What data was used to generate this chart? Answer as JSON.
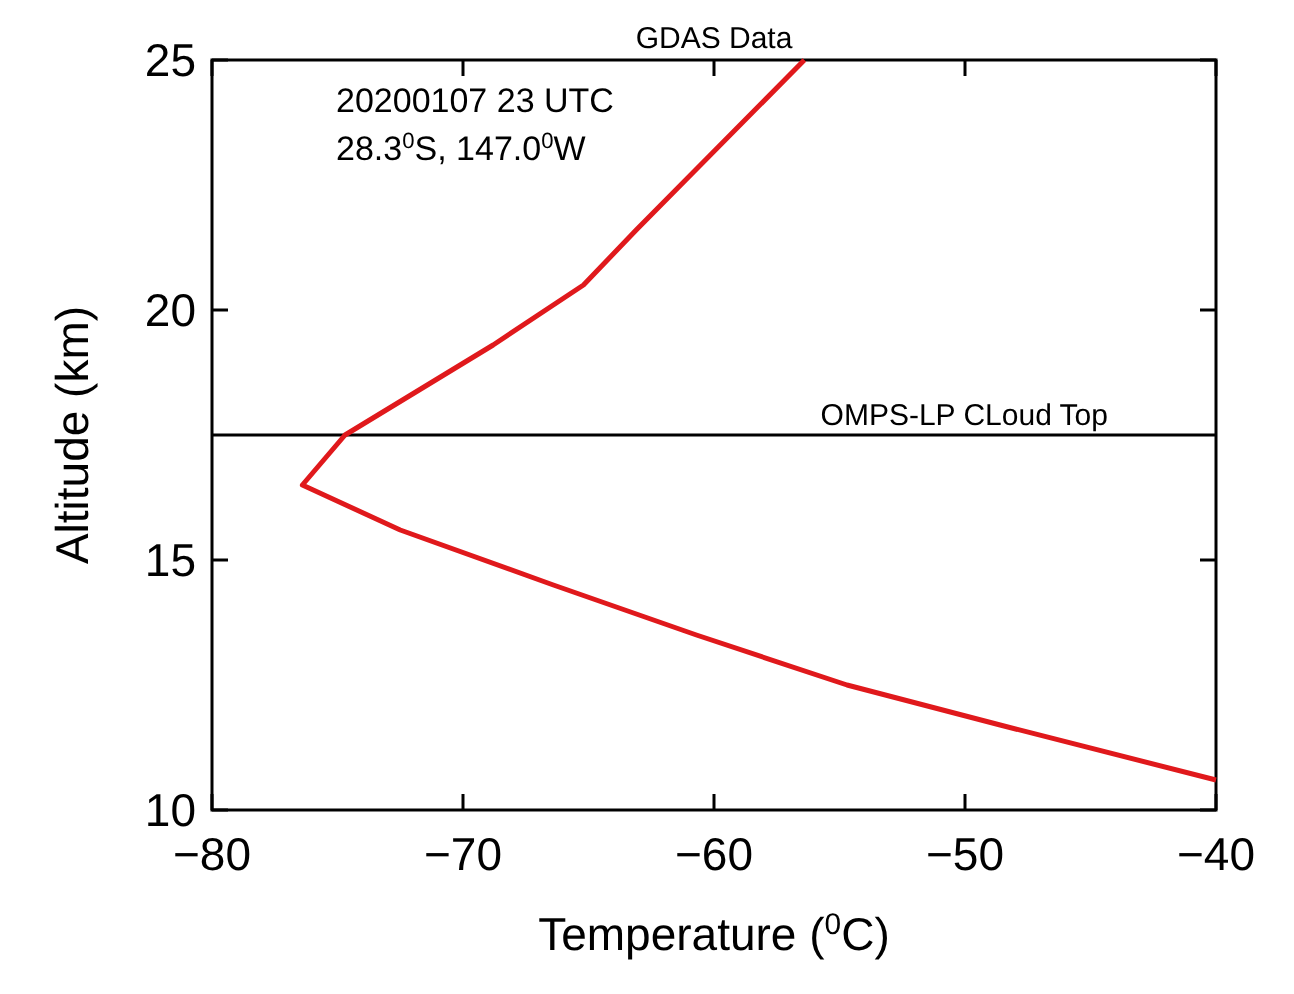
{
  "chart_data": {
    "type": "line",
    "title": "GDAS Data",
    "xlabel": "Temperature ($^{0}$C)",
    "ylabel": "Altitude (km)",
    "annotations": [
      "20200107 23 UTC",
      "28.3$^{0}$S, 147.0$^{0}$W"
    ],
    "series": [
      {
        "color": "#e0191c",
        "x": [
          -40,
          -48.6,
          -54.7,
          -60.7,
          -66.4,
          -72.5,
          -76.4,
          -74.7,
          -68.8,
          -65.2,
          -63.1,
          -56.4
        ],
        "values": [
          10.6,
          11.7,
          12.5,
          13.5,
          14.5,
          15.6,
          16.5,
          17.5,
          19.3,
          20.5,
          21.6,
          25
        ]
      }
    ],
    "xlim": [
      -80,
      -40
    ],
    "xticks": [
      -80,
      -70,
      -60,
      -50,
      -40
    ],
    "ylim": [
      10,
      25
    ],
    "yticks": [
      10,
      15,
      20,
      25
    ],
    "ref_lines": [
      {
        "axis": "y",
        "value": 17.5,
        "label": "OMPS-LP CLoud Top",
        "color": "#000000"
      }
    ],
    "line_style": "solid"
  }
}
